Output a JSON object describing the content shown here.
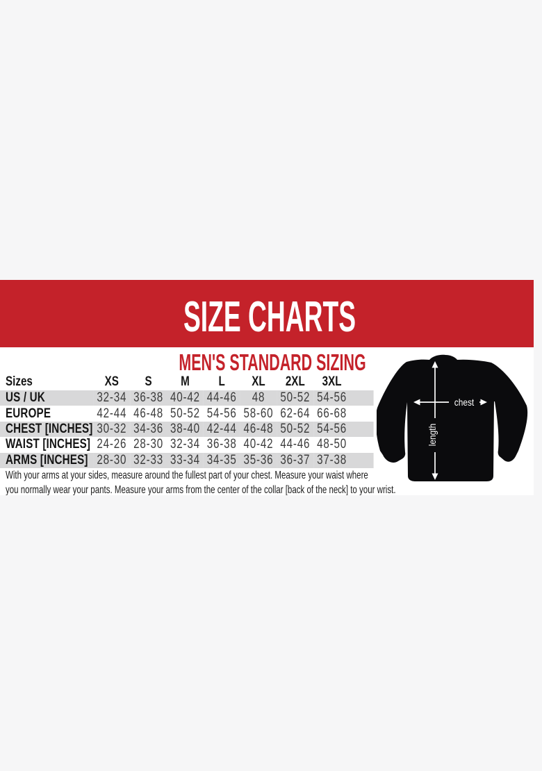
{
  "banner": {
    "title": "SIZE CHARTS",
    "background_color": "#c4222a",
    "text_color": "#ffffff"
  },
  "section": {
    "heading": "MEN'S STANDARD SIZING",
    "heading_color": "#c4222a"
  },
  "size_table": {
    "columns": [
      "Sizes",
      "XS",
      "S",
      "M",
      "L",
      "XL",
      "2XL",
      "3XL"
    ],
    "rows": [
      {
        "label": "US / UK",
        "values": [
          "32-34",
          "36-38",
          "40-42",
          "44-46",
          "48",
          "50-52",
          "54-56"
        ]
      },
      {
        "label": "EUROPE",
        "values": [
          "42-44",
          "46-48",
          "50-52",
          "54-56",
          "58-60",
          "62-64",
          "66-68"
        ]
      },
      {
        "label": "CHEST [INCHES]",
        "values": [
          "30-32",
          "34-36",
          "38-40",
          "42-44",
          "46-48",
          "50-52",
          "54-56"
        ]
      },
      {
        "label": "WAIST [INCHES]",
        "values": [
          "24-26",
          "28-30",
          "32-34",
          "36-38",
          "40-42",
          "44-46",
          "48-50"
        ]
      },
      {
        "label": "ARMS [INCHES]",
        "values": [
          "28-30",
          "32-33",
          "33-34",
          "34-35",
          "35-36",
          "36-37",
          "37-38"
        ]
      }
    ],
    "stripe_color": "#d8d8d9"
  },
  "note": {
    "line1": "With your arms at your sides, measure around the fullest part of your chest. Measure your waist where",
    "line2": "you normally wear your pants. Measure your arms from the center of the collar [back of the neck] to your wrist."
  },
  "diagram": {
    "chest_label": "chest",
    "length_label": "length",
    "shirt_color": "#0b0b0d"
  },
  "chart_data": {
    "type": "table",
    "title": "SIZE CHARTS",
    "subtitle": "MEN'S STANDARD SIZING",
    "columns": [
      "Sizes",
      "XS",
      "S",
      "M",
      "L",
      "XL",
      "2XL",
      "3XL"
    ],
    "rows": [
      [
        "US / UK",
        "32-34",
        "36-38",
        "40-42",
        "44-46",
        "48",
        "50-52",
        "54-56"
      ],
      [
        "EUROPE",
        "42-44",
        "46-48",
        "50-52",
        "54-56",
        "58-60",
        "62-64",
        "66-68"
      ],
      [
        "CHEST [INCHES]",
        "30-32",
        "34-36",
        "38-40",
        "42-44",
        "46-48",
        "50-52",
        "54-56"
      ],
      [
        "WAIST [INCHES]",
        "24-26",
        "28-30",
        "32-34",
        "36-38",
        "40-42",
        "44-46",
        "48-50"
      ],
      [
        "ARMS [INCHES]",
        "28-30",
        "32-33",
        "33-34",
        "34-35",
        "35-36",
        "36-37",
        "37-38"
      ]
    ],
    "annotations": [
      "chest",
      "length"
    ],
    "layout_hints": {
      "striped_rows": true,
      "stripe_on": "odd rows starting with US / UK"
    }
  }
}
